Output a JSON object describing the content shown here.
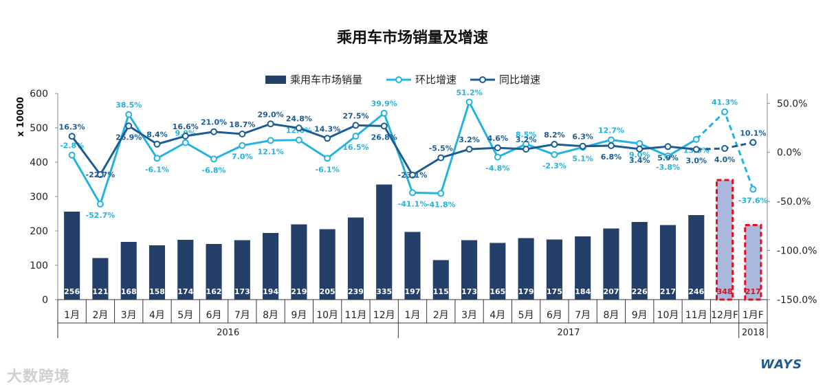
{
  "chart_data": {
    "type": "bar+line",
    "title": "乘用车市场销量及增速",
    "ylabel_left": "x 10000",
    "ylim_left": [
      0,
      600
    ],
    "yticks_left": [
      "0",
      "100",
      "200",
      "300",
      "400",
      "500",
      "600"
    ],
    "ylim_right": [
      -150,
      60
    ],
    "yticks_right": [
      "-150.0%",
      "-100.0%",
      "-50.0%",
      "0.0%",
      "50.0%"
    ],
    "yticks_right_values": [
      -150,
      -100,
      -50,
      0,
      50
    ],
    "legend_position": "top-center",
    "categories": [
      "1月",
      "2月",
      "3月",
      "4月",
      "5月",
      "6月",
      "7月",
      "8月",
      "9月",
      "10月",
      "11月",
      "12月",
      "1月",
      "2月",
      "3月",
      "4月",
      "5月",
      "6月",
      "7月",
      "8月",
      "9月",
      "10月",
      "11月",
      "12月F",
      "1月F"
    ],
    "years": [
      {
        "label": "2016",
        "start": 0,
        "end": 11
      },
      {
        "label": "2017",
        "start": 12,
        "end": 23
      },
      {
        "label": "2018",
        "start": 24,
        "end": 24
      }
    ],
    "series": [
      {
        "name": "乘用车市场销量",
        "kind": "bar",
        "color": "#24406a",
        "forecast_color": "#a9b8dc",
        "forecast_outline": "#e0101a",
        "forecast_from": 23,
        "values": [
          256,
          121,
          168,
          158,
          174,
          162,
          173,
          194,
          219,
          205,
          239,
          335,
          197,
          115,
          173,
          165,
          179,
          175,
          184,
          207,
          226,
          217,
          246,
          348,
          217
        ],
        "labels": [
          "256",
          "121",
          "168",
          "158",
          "174",
          "162",
          "173",
          "194",
          "219",
          "205",
          "239",
          "335",
          "197",
          "115",
          "173",
          "165",
          "179",
          "175",
          "184",
          "207",
          "226",
          "217",
          "246",
          "348",
          "217"
        ]
      },
      {
        "name": "环比增速",
        "kind": "line",
        "color": "#23b3e0",
        "dashed_from": 22,
        "values": [
          -2.8,
          -52.7,
          38.5,
          -6.1,
          9.9,
          -6.8,
          7.0,
          12.1,
          12.6,
          -6.1,
          16.5,
          39.9,
          -41.1,
          -41.8,
          51.2,
          -4.8,
          8.5,
          -2.3,
          5.1,
          12.7,
          9.0,
          -3.8,
          13.3,
          41.3,
          -37.6
        ],
        "labels": [
          "-2.8%",
          "-52.7%",
          "38.5%",
          "-6.1%",
          "9.9%",
          "-6.8%",
          "7.0%",
          "12.1%",
          "12.6%",
          "-6.1%",
          "16.5%",
          "39.9%",
          "-41.1%",
          "-41.8%",
          "51.2%",
          "-4.8%",
          "8.5%",
          "-2.3%",
          "5.1%",
          "12.7%",
          "9.0%",
          "-3.8%",
          "13.3%",
          "41.3%",
          "-37.6%"
        ]
      },
      {
        "name": "同比增速",
        "kind": "line",
        "color": "#1b5c94",
        "dashed_from": 22,
        "values": [
          16.3,
          -22.7,
          26.9,
          8.4,
          16.6,
          21.0,
          18.7,
          29.0,
          24.8,
          14.3,
          27.5,
          26.8,
          -23.1,
          -5.5,
          3.2,
          4.6,
          3.2,
          8.2,
          6.3,
          6.8,
          3.4,
          5.9,
          3.0,
          4.0,
          10.1
        ],
        "labels": [
          "16.3%",
          "-22.7%",
          "26.9%",
          "8.4%",
          "16.6%",
          "21.0%",
          "18.7%",
          "29.0%",
          "24.8%",
          "14.3%",
          "27.5%",
          "26.8%",
          "-23.1%",
          "-5.5%",
          "3.2%",
          "4.6%",
          "3.2%",
          "8.2%",
          "6.3%",
          "6.8%",
          "3.4%",
          "5.9%",
          "3.0%",
          "4.0%",
          "10.1%"
        ]
      }
    ]
  },
  "watermark": "大数跨境",
  "logo": "WAYS"
}
